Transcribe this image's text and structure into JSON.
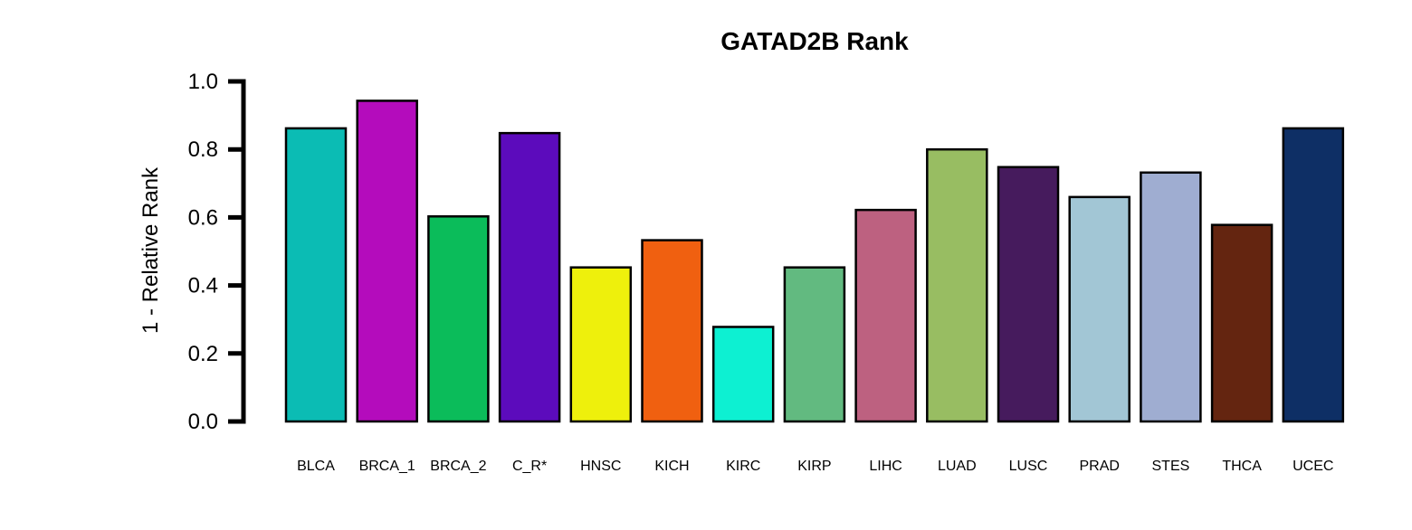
{
  "chart_data": {
    "type": "bar",
    "title": "GATAD2B Rank",
    "xlabel": "",
    "ylabel": "1 - Relative Rank",
    "ylim": [
      0,
      1.0
    ],
    "yticks": [
      "0.0",
      "0.2",
      "0.4",
      "0.6",
      "0.8",
      "1.0"
    ],
    "ytick_values": [
      0.0,
      0.2,
      0.4,
      0.6,
      0.8,
      1.0
    ],
    "grid": false,
    "legend": "none",
    "categories": [
      "BLCA",
      "BRCA_1",
      "BRCA_2",
      "C_R*",
      "HNSC",
      "KICH",
      "KIRC",
      "KIRP",
      "LIHC",
      "LUAD",
      "LUSC",
      "PRAD",
      "STES",
      "THCA",
      "UCEC"
    ],
    "values": [
      0.862,
      0.943,
      0.603,
      0.848,
      0.453,
      0.533,
      0.278,
      0.453,
      0.622,
      0.8,
      0.748,
      0.66,
      0.732,
      0.578,
      0.862
    ],
    "colors": [
      "#0bbcb4",
      "#b40cbc",
      "#0bbc5a",
      "#5c0bbc",
      "#eef00c",
      "#f06010",
      "#0df0d2",
      "#62ba80",
      "#bd6180",
      "#98bd62",
      "#461b5d",
      "#a2c6d5",
      "#9fadd1",
      "#642510",
      "#0e2f65"
    ]
  }
}
